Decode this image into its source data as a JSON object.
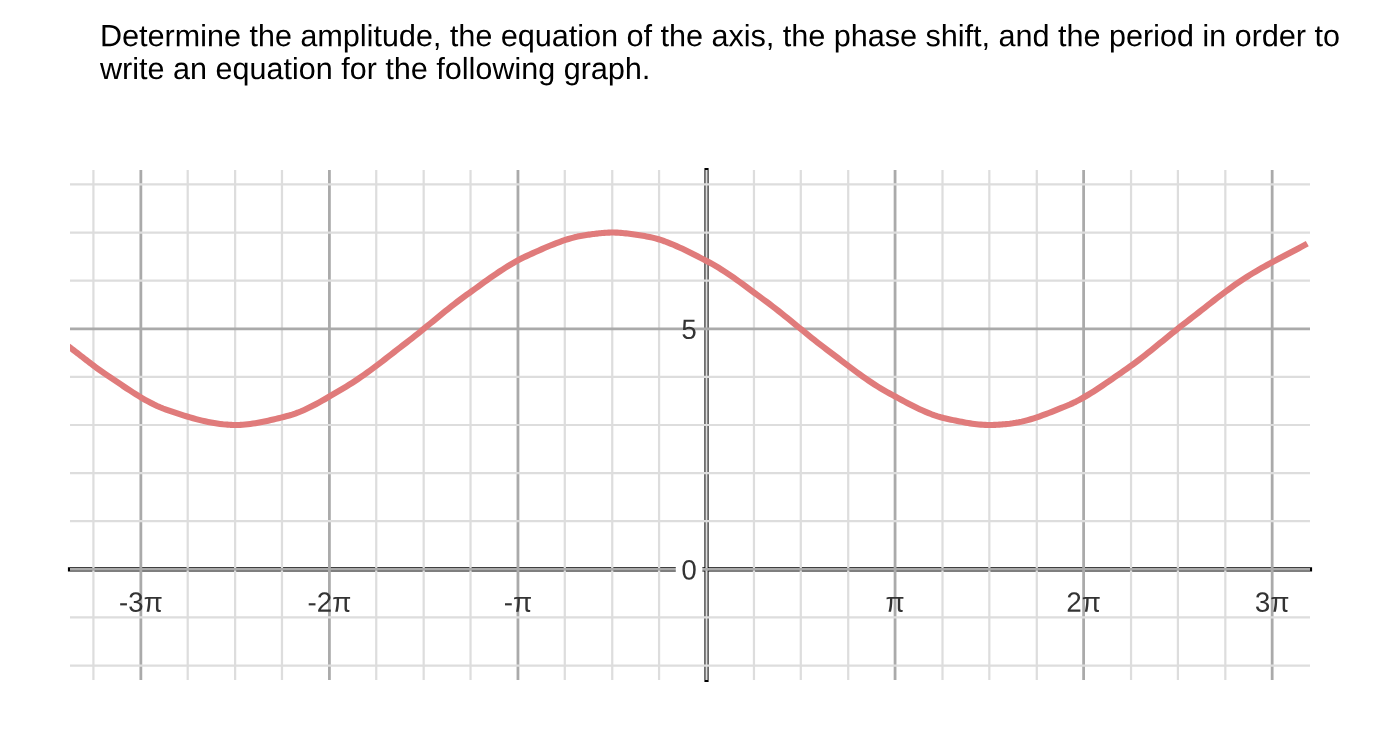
{
  "chart_data": {
    "type": "line",
    "title": "Determine the amplitude, the equation of the axis, the phase shift, and the period in order to write an equation for the following graph.",
    "x": [
      -10.6,
      -10,
      -9,
      -8,
      -7.854,
      -7,
      -6,
      -5,
      -4,
      -3,
      -2,
      -1.571,
      -1,
      0,
      1,
      2,
      3,
      4,
      4.712,
      5,
      6,
      7,
      8,
      9,
      9.96
    ],
    "series": [
      {
        "color": "#e07b7b",
        "values": [
          4.61,
          4.05,
          3.32,
          3.01,
          3.0,
          3.18,
          3.8,
          4.71,
          5.7,
          6.51,
          6.95,
          7.0,
          6.92,
          6.41,
          5.56,
          4.57,
          3.69,
          3.13,
          3.0,
          3.02,
          3.4,
          4.17,
          5.15,
          6.08,
          6.74
        ]
      }
    ],
    "xlim": [
      -10.6,
      10.05
    ],
    "ylim": [
      -2.3,
      8.3
    ],
    "xticks": [
      {
        "value": -10.21,
        "label": null
      },
      {
        "value": -9.42,
        "label": "-3π"
      },
      {
        "value": -8.64,
        "label": null
      },
      {
        "value": -7.85,
        "label": null
      },
      {
        "value": -7.07,
        "label": null
      },
      {
        "value": -6.28,
        "label": "-2π"
      },
      {
        "value": -5.5,
        "label": null
      },
      {
        "value": -4.71,
        "label": null
      },
      {
        "value": -3.93,
        "label": null
      },
      {
        "value": -3.14,
        "label": "-π"
      },
      {
        "value": -2.36,
        "label": null
      },
      {
        "value": -1.57,
        "label": null
      },
      {
        "value": -0.79,
        "label": null
      },
      {
        "value": 0,
        "label": null
      },
      {
        "value": 0.79,
        "label": null
      },
      {
        "value": 1.57,
        "label": null
      },
      {
        "value": 2.36,
        "label": null
      },
      {
        "value": 3.14,
        "label": "π"
      },
      {
        "value": 3.93,
        "label": null
      },
      {
        "value": 4.71,
        "label": null
      },
      {
        "value": 5.5,
        "label": null
      },
      {
        "value": 6.28,
        "label": "2π"
      },
      {
        "value": 7.07,
        "label": null
      },
      {
        "value": 7.85,
        "label": null
      },
      {
        "value": 8.64,
        "label": null
      },
      {
        "value": 9.42,
        "label": "3π"
      }
    ],
    "yticks": [
      {
        "value": -2,
        "label": null
      },
      {
        "value": -1,
        "label": null
      },
      0,
      {
        "value": 1,
        "label": null
      },
      {
        "value": 2,
        "label": null
      },
      {
        "value": 3,
        "label": null
      },
      {
        "value": 4,
        "label": null
      },
      5,
      {
        "value": 6,
        "label": null
      },
      {
        "value": 7,
        "label": null
      },
      {
        "value": 8,
        "label": null
      }
    ],
    "grid": true,
    "marker": "none",
    "line_style": "solid"
  }
}
